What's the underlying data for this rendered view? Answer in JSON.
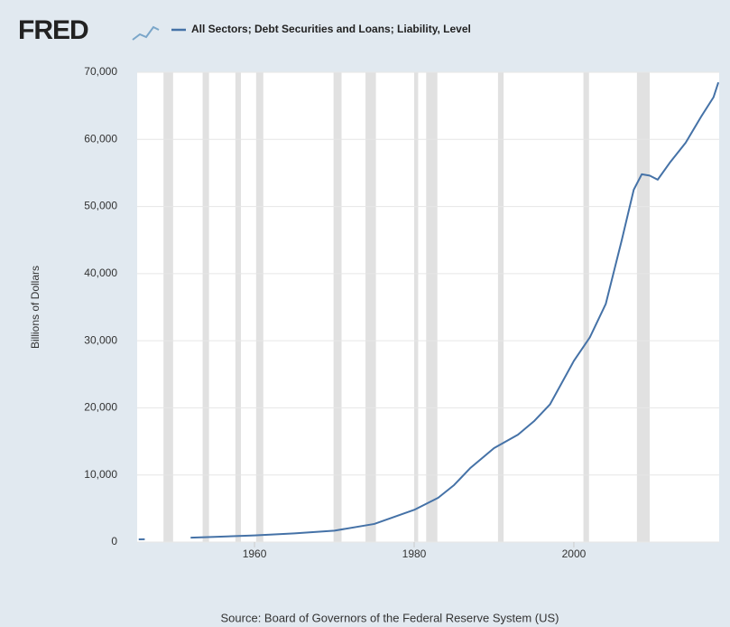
{
  "chart_data": {
    "type": "line",
    "logo": "FRED",
    "title": "All Sectors; Debt Securities and Loans; Liability, Level",
    "y_label": "Billions of Dollars",
    "source": "Source: Board of Governors of the Federal Reserve System (US)",
    "x": [
      1945.5,
      1946.25,
      1949,
      1952,
      1955,
      1960,
      1965,
      1970,
      1975,
      1980,
      1983,
      1985,
      1987,
      1990,
      1993,
      1995,
      1997,
      2000,
      2002,
      2004,
      2006,
      2007.5,
      2008.5,
      2009.5,
      2010.5,
      2012,
      2014,
      2016,
      2017.5,
      2018.1
    ],
    "series": [
      {
        "name": "All Sectors; Debt Securities and Loans; Liability, Level",
        "color": "#4572a7",
        "values": [
          400,
          420,
          null,
          650,
          780,
          1000,
          1300,
          1700,
          2700,
          4800,
          6600,
          8500,
          11000,
          14000,
          16000,
          18000,
          20500,
          27000,
          30500,
          35500,
          45000,
          52500,
          54800,
          54600,
          54000,
          56500,
          59500,
          63500,
          66300,
          68500
        ]
      }
    ],
    "recessions": [
      [
        1948.6,
        1949.8
      ],
      [
        1953.5,
        1954.3
      ],
      [
        1957.6,
        1958.3
      ],
      [
        1960.2,
        1961.1
      ],
      [
        1969.9,
        1970.9
      ],
      [
        1973.9,
        1975.2
      ],
      [
        1980.0,
        1980.5
      ],
      [
        1981.5,
        1982.9
      ],
      [
        1990.5,
        1991.2
      ],
      [
        2001.2,
        2001.9
      ],
      [
        2007.9,
        2009.5
      ]
    ],
    "xlim": [
      1945.3,
      2018.2
    ],
    "xticks": [
      1960,
      1980,
      2000
    ],
    "ylim": [
      0,
      70000
    ],
    "yticks": [
      0,
      {
        "value": 10000,
        "label": "10,000"
      },
      {
        "value": 20000,
        "label": "20,000"
      },
      {
        "value": 30000,
        "label": "30,000"
      },
      {
        "value": 40000,
        "label": "40,000"
      },
      {
        "value": 50000,
        "label": "50,000"
      },
      {
        "value": 60000,
        "label": "60,000"
      },
      {
        "value": 70000,
        "label": "70,000"
      }
    ],
    "grid": true
  }
}
